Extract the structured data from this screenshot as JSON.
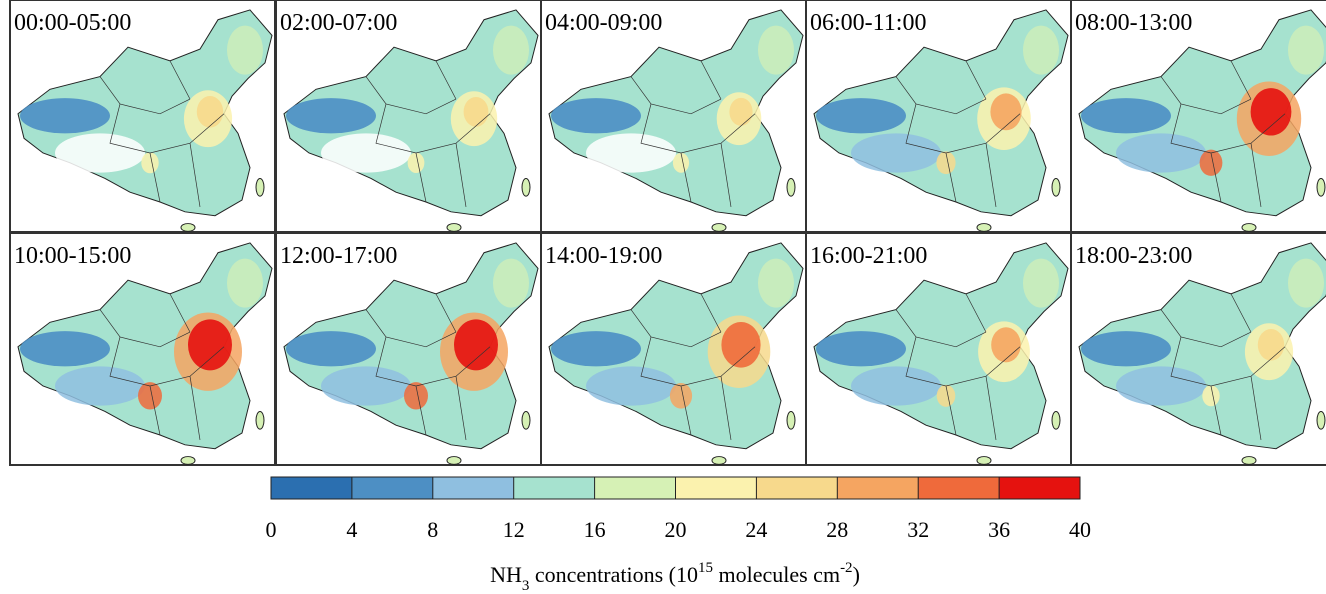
{
  "panels": [
    {
      "label": "00:00-05:00"
    },
    {
      "label": "02:00-07:00"
    },
    {
      "label": "04:00-09:00"
    },
    {
      "label": "06:00-11:00"
    },
    {
      "label": "08:00-13:00"
    },
    {
      "label": "10:00-15:00"
    },
    {
      "label": "12:00-17:00"
    },
    {
      "label": "14:00-19:00"
    },
    {
      "label": "16:00-21:00"
    },
    {
      "label": "18:00-23:00"
    }
  ],
  "colorbar": {
    "ticks": [
      0,
      4,
      8,
      12,
      16,
      20,
      24,
      28,
      32,
      36,
      40
    ],
    "colors": [
      "#2b6fb0",
      "#4d8fc4",
      "#8fbfe0",
      "#a6e2cf",
      "#d6f1b5",
      "#fbf2ae",
      "#f7d98c",
      "#f5a561",
      "#ef6a3b",
      "#e5120f"
    ],
    "label": {
      "species": "NH",
      "species_sub": "3",
      "text1": " concentrations (10",
      "exp": "15",
      "text2": " molecules cm",
      "unit_exp": "-2",
      "text3": ")"
    }
  }
}
